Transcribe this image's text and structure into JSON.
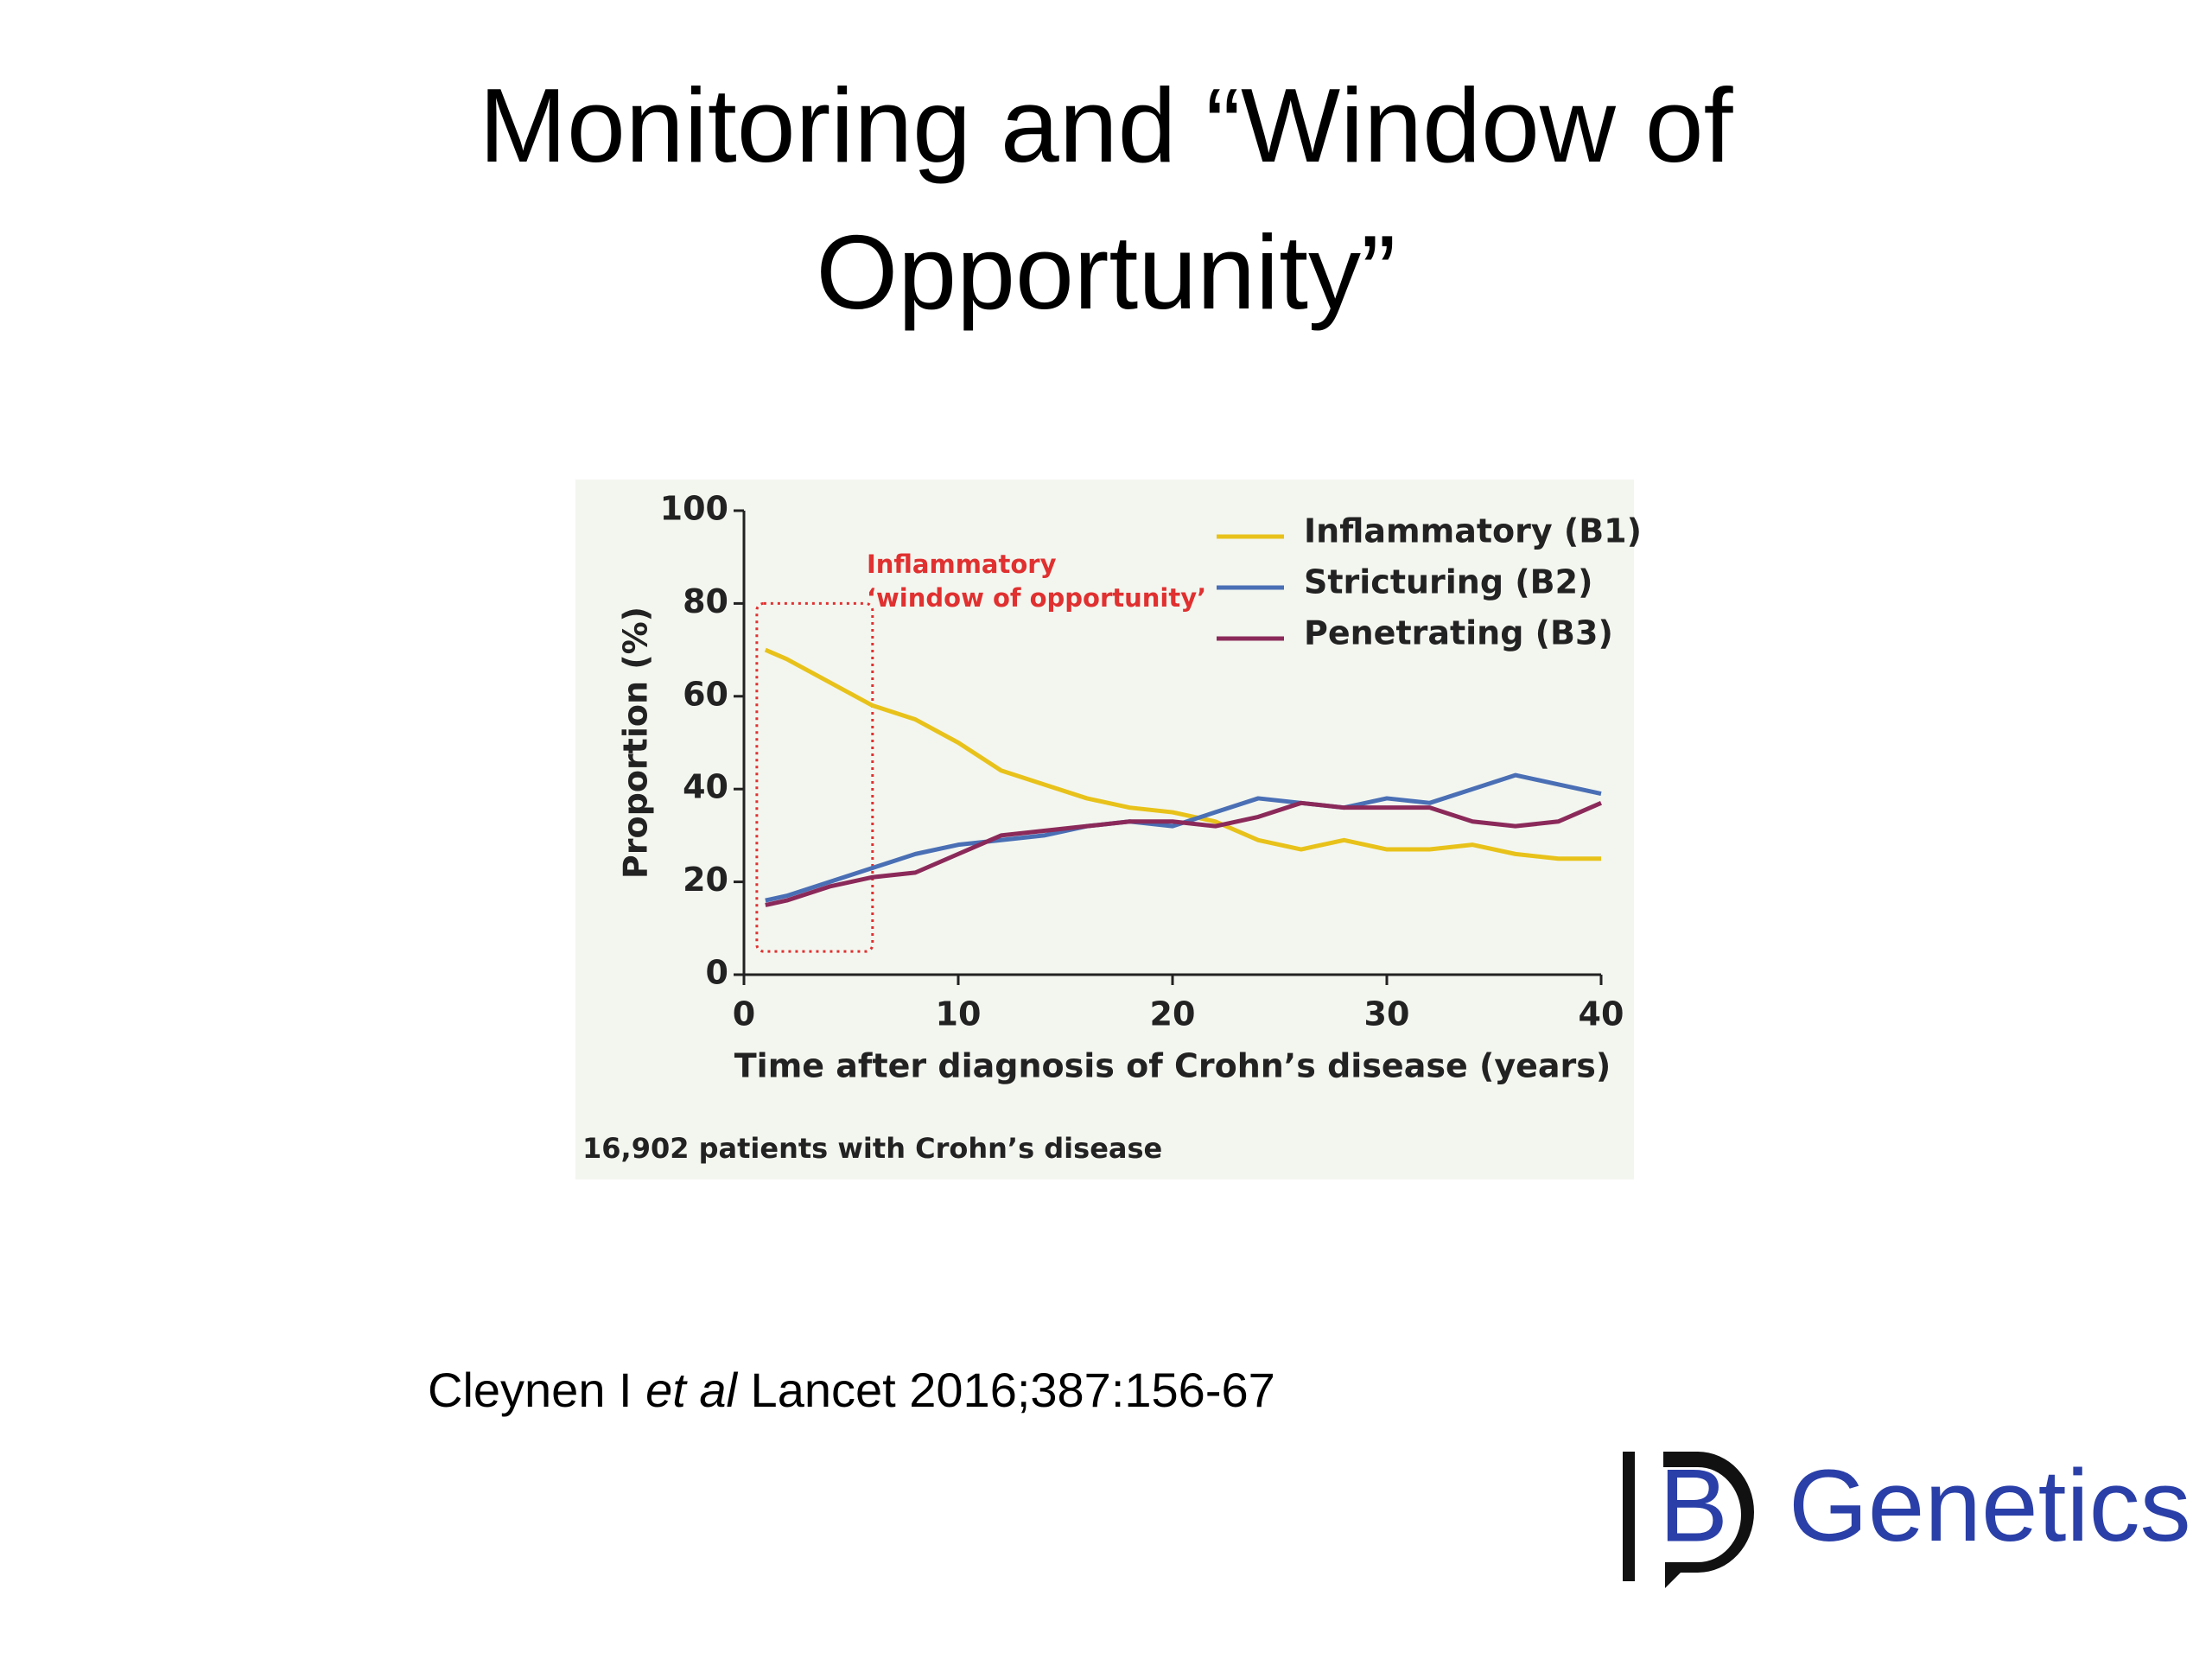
{
  "slide_title": [
    "Monitoring and “Window of",
    "Opportunity”"
  ],
  "citation": [
    "Cleynen I ",
    "et al",
    " Lancet 2016;387:156-67"
  ],
  "logo": {
    "mark": "B",
    "text": "Genetics"
  },
  "chart_data": {
    "type": "line",
    "x_label": "Time after diagnosis of Crohn’s disease (years)",
    "y_label": "Proportion (%)",
    "footnote": "16,902 patients with Crohn’s disease",
    "annotation": {
      "lines": [
        "Inflammatory",
        "‘window of opportunity’"
      ],
      "x": [
        0.6,
        6
      ],
      "y": [
        5,
        80
      ],
      "color": "#e03030"
    },
    "x": [
      1,
      2,
      4,
      6,
      8,
      10,
      12,
      14,
      16,
      18,
      20,
      22,
      24,
      26,
      28,
      30,
      32,
      34,
      36,
      38,
      40
    ],
    "series": [
      {
        "name": "Inflammatory (B1)",
        "color": "#e8c21a",
        "values": [
          70,
          68,
          63,
          58,
          55,
          50,
          44,
          41,
          38,
          36,
          35,
          33,
          29,
          27,
          29,
          27,
          27,
          28,
          26,
          25,
          25
        ]
      },
      {
        "name": "Stricturing (B2)",
        "color": "#4a6fb5",
        "values": [
          16,
          17,
          20,
          23,
          26,
          28,
          29,
          30,
          32,
          33,
          32,
          35,
          38,
          37,
          36,
          38,
          37,
          40,
          43,
          41,
          39
        ]
      },
      {
        "name": "Penetrating (B3)",
        "color": "#8b2a5a",
        "values": [
          15,
          16,
          19,
          21,
          22,
          26,
          30,
          31,
          32,
          33,
          33,
          32,
          34,
          37,
          36,
          36,
          36,
          33,
          32,
          33,
          37
        ]
      }
    ],
    "xlim": [
      0,
      40
    ],
    "xticks": [
      0,
      10,
      20,
      30,
      40
    ],
    "ylim": [
      0,
      100
    ],
    "yticks": [
      0,
      20,
      40,
      60,
      80,
      100
    ],
    "legend": "upper-right",
    "grid": false
  }
}
